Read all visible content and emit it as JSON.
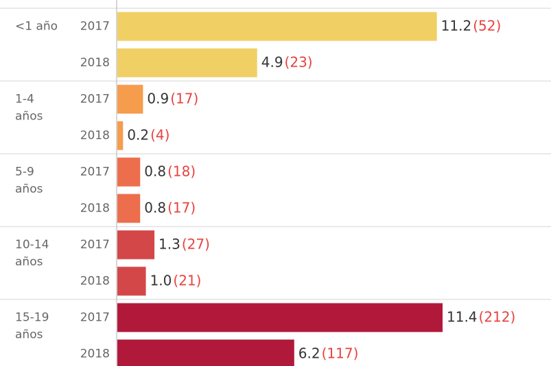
{
  "chart_data": {
    "type": "bar",
    "orientation": "horizontal",
    "xlim": [
      0,
      15.2
    ],
    "groups": [
      {
        "label": [
          "<1 año"
        ],
        "color": "#f0cf65",
        "years": [
          "2017",
          "2018"
        ],
        "values": [
          11.2,
          4.9
        ],
        "value_labels": [
          "11.2",
          "4.9"
        ],
        "count_labels": [
          "(52)",
          "(23)"
        ]
      },
      {
        "label": [
          "1-4",
          "años"
        ],
        "color": "#f59c4d",
        "years": [
          "2017",
          "2018"
        ],
        "values": [
          0.9,
          0.2
        ],
        "value_labels": [
          "0.9",
          "0.2"
        ],
        "count_labels": [
          "(17)",
          "(4)"
        ]
      },
      {
        "label": [
          "5-9",
          "años"
        ],
        "color": "#ec6e4c",
        "years": [
          "2017",
          "2018"
        ],
        "values": [
          0.8,
          0.8
        ],
        "value_labels": [
          "0.8",
          "0.8"
        ],
        "count_labels": [
          "(18)",
          "(17)"
        ]
      },
      {
        "label": [
          "10-14",
          "años"
        ],
        "color": "#d44748",
        "years": [
          "2017",
          "2018"
        ],
        "values": [
          1.3,
          1.0
        ],
        "value_labels": [
          "1.3",
          "1.0"
        ],
        "count_labels": [
          "(27)",
          "(21)"
        ]
      },
      {
        "label": [
          "15-19",
          "años"
        ],
        "color": "#b1193a",
        "years": [
          "2017",
          "2018"
        ],
        "values": [
          11.4,
          6.2
        ],
        "value_labels": [
          "11.4",
          "6.2"
        ],
        "count_labels": [
          "(212)",
          "(117)"
        ]
      }
    ]
  }
}
